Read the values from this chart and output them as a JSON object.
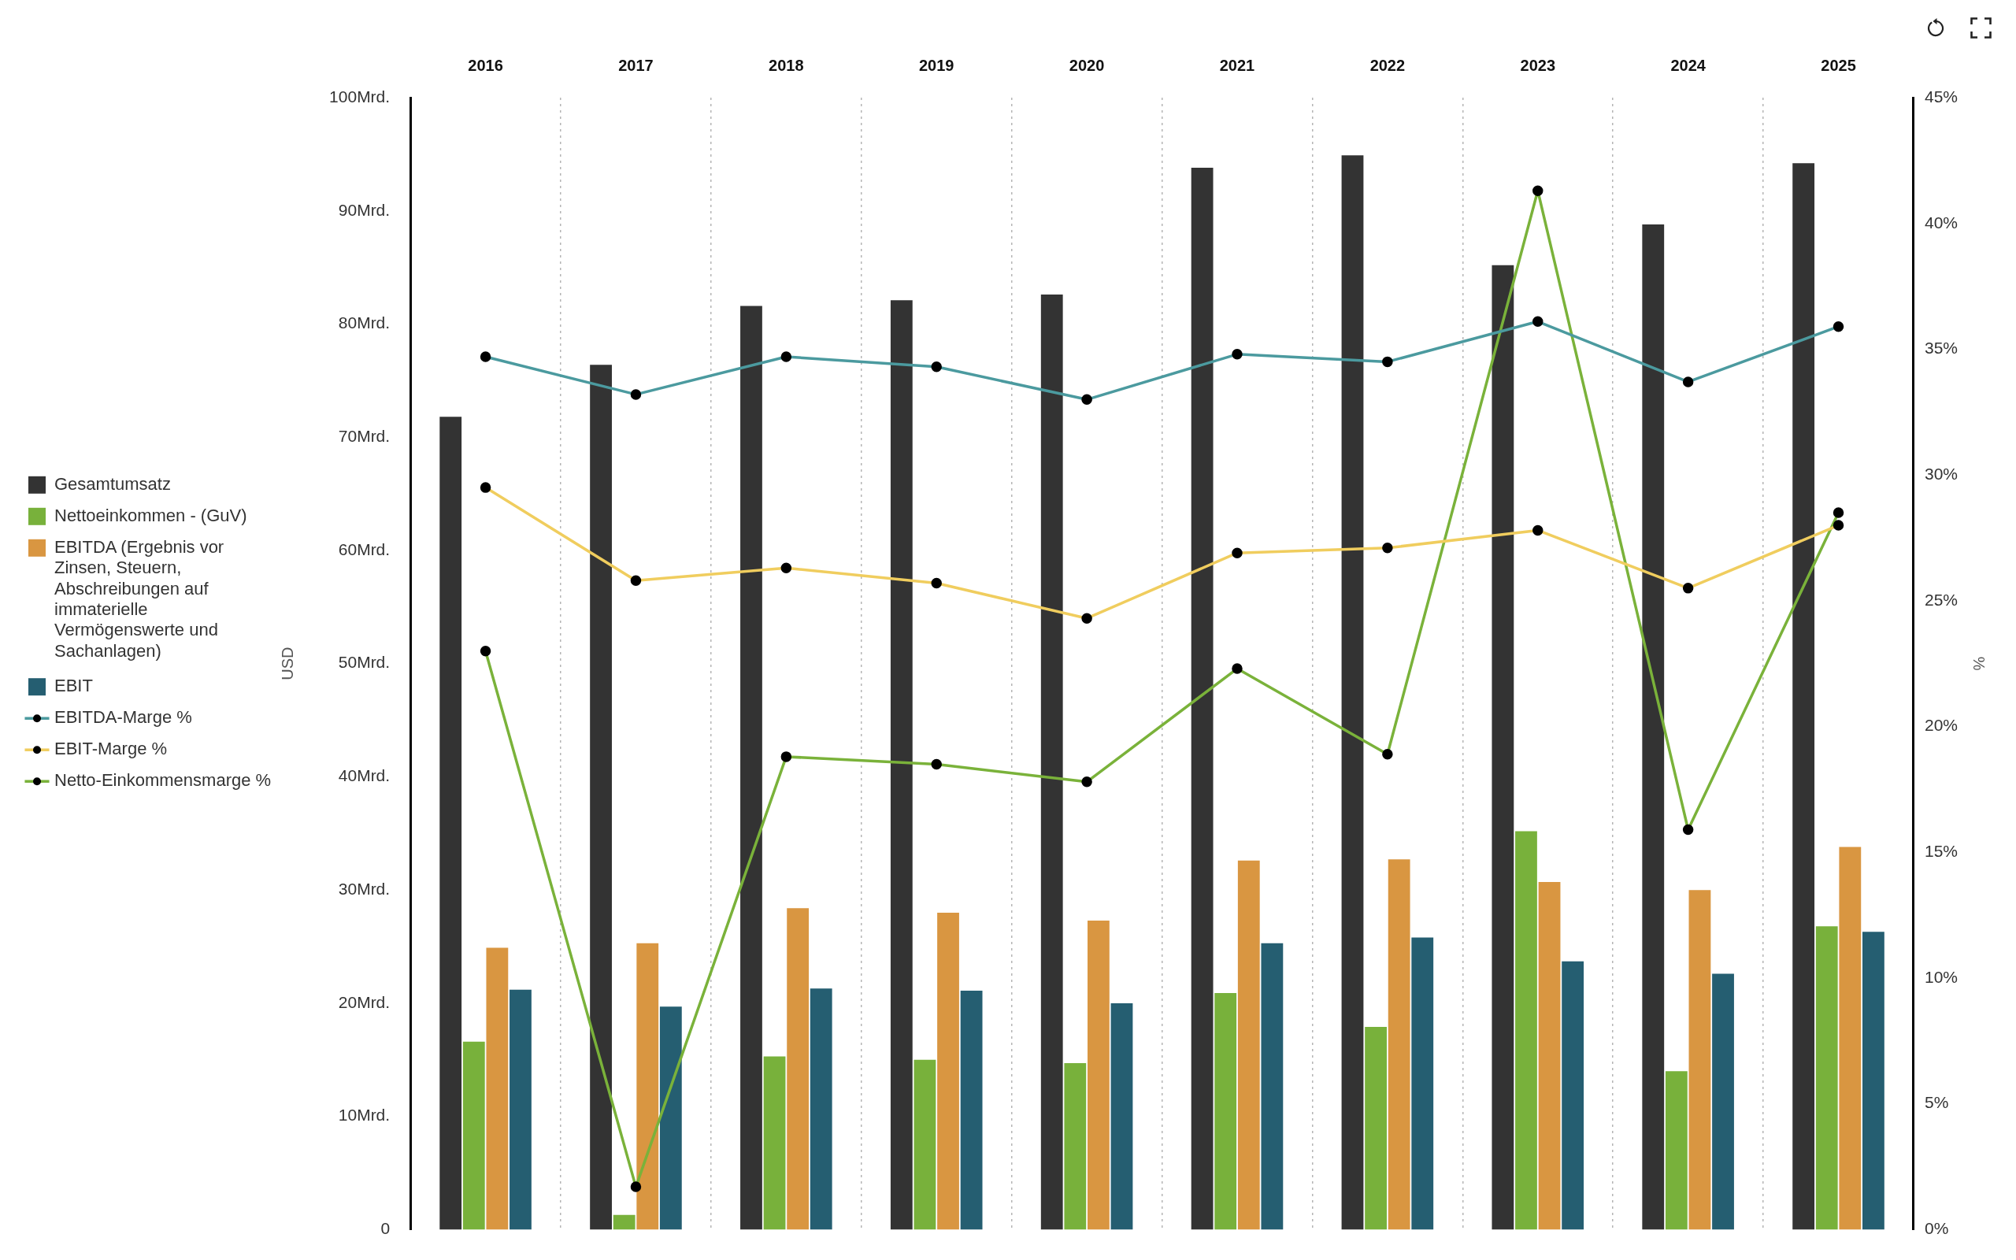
{
  "chart_data": {
    "type": "bar",
    "categories": [
      "2016",
      "2017",
      "2018",
      "2019",
      "2020",
      "2021",
      "2022",
      "2023",
      "2024",
      "2025"
    ],
    "ylabel": "USD",
    "y2label": "%",
    "ylim": [
      0,
      100
    ],
    "yticks": [
      0,
      {
        "value": 10,
        "label": "10Mrd."
      },
      {
        "value": 20,
        "label": "20Mrd."
      },
      {
        "value": 30,
        "label": "30Mrd."
      },
      {
        "value": 40,
        "label": "40Mrd."
      },
      {
        "value": 50,
        "label": "50Mrd."
      },
      {
        "value": 60,
        "label": "60Mrd."
      },
      {
        "value": 70,
        "label": "70Mrd."
      },
      {
        "value": 80,
        "label": "80Mrd."
      },
      {
        "value": 90,
        "label": "90Mrd."
      },
      {
        "value": 100,
        "label": "100Mrd."
      }
    ],
    "y2lim": [
      0,
      45
    ],
    "y2ticks": [
      {
        "value": 0,
        "label": "0%"
      },
      {
        "value": 5,
        "label": "5%"
      },
      {
        "value": 10,
        "label": "10%"
      },
      {
        "value": 15,
        "label": "15%"
      },
      {
        "value": 20,
        "label": "20%"
      },
      {
        "value": 25,
        "label": "25%"
      },
      {
        "value": 30,
        "label": "30%"
      },
      {
        "value": 35,
        "label": "35%"
      },
      {
        "value": 40,
        "label": "40%"
      },
      {
        "value": 45,
        "label": "45%"
      }
    ],
    "grid": "x",
    "legend": "left",
    "marker": "circle",
    "line_style": "solid",
    "series": [
      {
        "name": "Gesamtumsatz",
        "color": "#333333",
        "values": [
          71.8,
          76.4,
          81.6,
          82.1,
          82.6,
          93.8,
          94.9,
          85.2,
          88.8,
          94.2
        ]
      },
      {
        "name": "Nettoeinkommen - (GuV)",
        "color": "#78b13b",
        "values": [
          16.6,
          1.3,
          15.3,
          15.0,
          14.7,
          20.9,
          17.9,
          35.2,
          14.0,
          26.8
        ]
      },
      {
        "name": "EBITDA (Ergebnis vor Zinsen, Steuern, Abschreibungen auf immaterielle Vermögenswerte und Sachanlagen)",
        "color": "#d99641",
        "values": [
          24.9,
          25.3,
          28.4,
          28.0,
          27.3,
          32.6,
          32.7,
          30.7,
          30.0,
          33.8
        ]
      },
      {
        "name": "EBIT",
        "color": "#255e71",
        "values": [
          21.2,
          19.7,
          21.3,
          21.1,
          20.0,
          25.3,
          25.8,
          23.7,
          22.6,
          26.3
        ]
      },
      {
        "name": "EBITDA-Marge %",
        "type": "line",
        "axis": "y2",
        "color": "#4b9a9f",
        "values": [
          34.7,
          33.2,
          34.7,
          34.3,
          33.0,
          34.8,
          34.5,
          36.1,
          33.7,
          35.9
        ]
      },
      {
        "name": "EBIT-Marge %",
        "type": "line",
        "axis": "y2",
        "color": "#f0cd5e",
        "values": [
          29.5,
          25.8,
          26.3,
          25.7,
          24.3,
          26.9,
          27.1,
          27.8,
          25.5,
          28.0
        ]
      },
      {
        "name": "Netto-Einkommensmarge %",
        "type": "line",
        "axis": "y2",
        "color": "#7ab23a",
        "values": [
          23.0,
          1.7,
          18.8,
          18.5,
          17.8,
          22.3,
          18.9,
          41.3,
          15.9,
          28.5
        ]
      }
    ]
  }
}
